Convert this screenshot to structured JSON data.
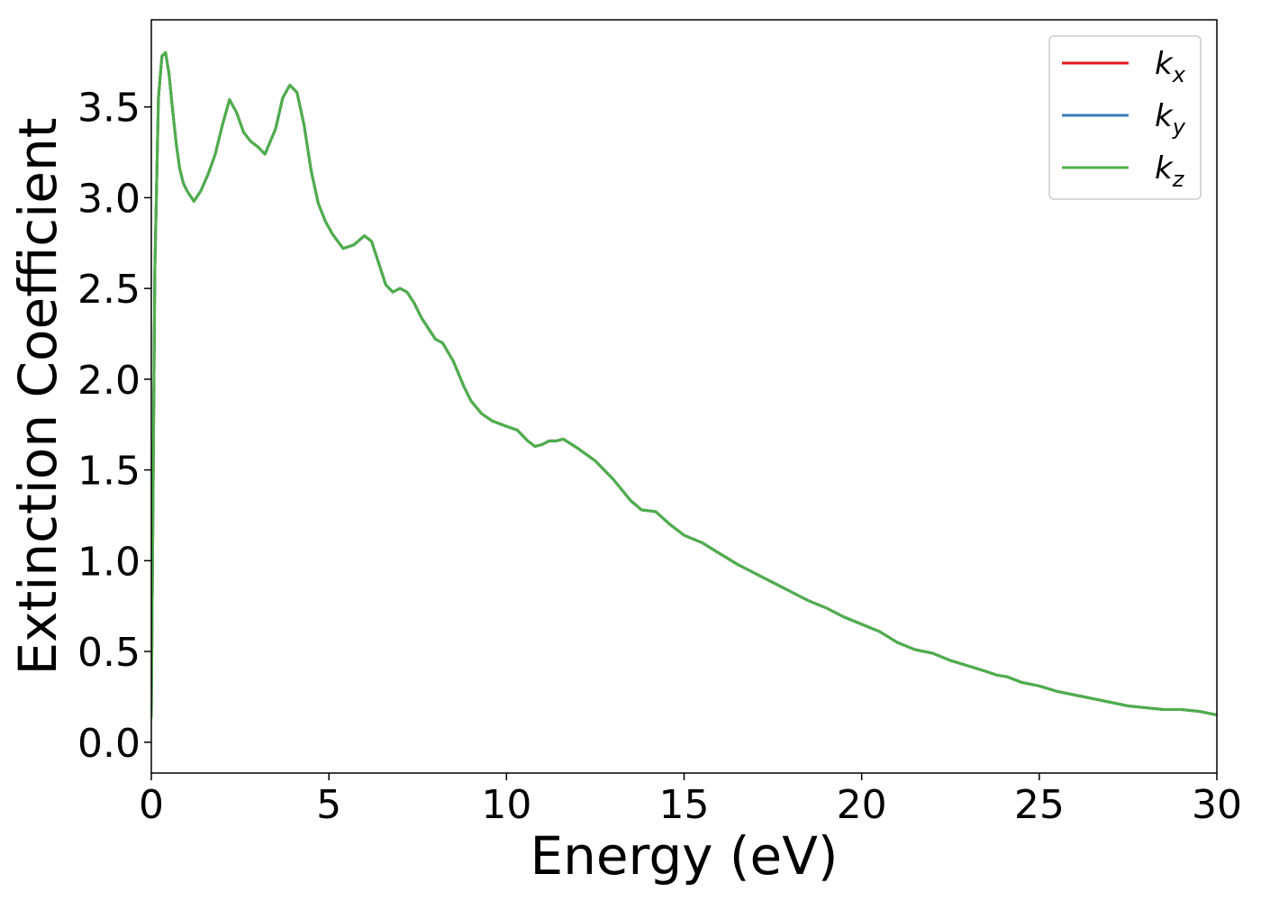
{
  "chart_data": {
    "type": "line",
    "xlabel": "Energy (eV)",
    "ylabel": "Extinction Coefficient",
    "xlim": [
      0,
      30
    ],
    "ylim": [
      -0.17,
      3.98
    ],
    "x_ticks": [
      "0",
      "5",
      "10",
      "15",
      "20",
      "25",
      "30"
    ],
    "x_tick_values": [
      0,
      5,
      10,
      15,
      20,
      25,
      30
    ],
    "y_ticks": [
      "0.0",
      "0.5",
      "1.0",
      "1.5",
      "2.0",
      "2.5",
      "3.0",
      "3.5"
    ],
    "y_tick_values": [
      0.0,
      0.5,
      1.0,
      1.5,
      2.0,
      2.5,
      3.0,
      3.5
    ],
    "grid": false,
    "legend_position": "top-right",
    "x": [
      0,
      0.1,
      0.2,
      0.3,
      0.4,
      0.5,
      0.6,
      0.7,
      0.8,
      0.9,
      1.0,
      1.2,
      1.4,
      1.6,
      1.8,
      2.0,
      2.2,
      2.4,
      2.6,
      2.8,
      3.0,
      3.2,
      3.5,
      3.7,
      3.9,
      4.1,
      4.3,
      4.5,
      4.7,
      4.9,
      5.1,
      5.4,
      5.7,
      6.0,
      6.2,
      6.4,
      6.6,
      6.8,
      7.0,
      7.2,
      7.4,
      7.6,
      7.8,
      8.0,
      8.2,
      8.5,
      8.8,
      9.0,
      9.3,
      9.6,
      10.0,
      10.3,
      10.6,
      10.8,
      11.0,
      11.2,
      11.4,
      11.6,
      12.0,
      12.5,
      13.0,
      13.5,
      13.8,
      14.2,
      14.6,
      15.0,
      15.5,
      16.0,
      16.5,
      17.0,
      17.5,
      18.0,
      18.5,
      19.0,
      19.5,
      20.0,
      20.5,
      21.0,
      21.5,
      22.0,
      22.5,
      23.0,
      23.5,
      23.8,
      24.1,
      24.5,
      25.0,
      25.5,
      26.0,
      26.5,
      27.0,
      27.5,
      28.0,
      28.5,
      29.0,
      29.5,
      30.0
    ],
    "series": [
      {
        "name": "k_x",
        "color": "#e41a1c",
        "values": [
          0.14,
          2.6,
          3.55,
          3.78,
          3.8,
          3.68,
          3.48,
          3.3,
          3.16,
          3.08,
          3.04,
          2.98,
          3.04,
          3.13,
          3.24,
          3.4,
          3.54,
          3.47,
          3.36,
          3.31,
          3.28,
          3.24,
          3.38,
          3.55,
          3.62,
          3.58,
          3.4,
          3.15,
          2.97,
          2.87,
          2.8,
          2.72,
          2.74,
          2.79,
          2.76,
          2.64,
          2.52,
          2.48,
          2.5,
          2.48,
          2.42,
          2.34,
          2.28,
          2.22,
          2.2,
          2.1,
          1.96,
          1.88,
          1.81,
          1.77,
          1.74,
          1.72,
          1.66,
          1.63,
          1.64,
          1.66,
          1.66,
          1.67,
          1.62,
          1.55,
          1.45,
          1.33,
          1.28,
          1.27,
          1.2,
          1.14,
          1.1,
          1.04,
          0.98,
          0.93,
          0.88,
          0.83,
          0.78,
          0.74,
          0.69,
          0.65,
          0.61,
          0.55,
          0.51,
          0.49,
          0.45,
          0.42,
          0.39,
          0.37,
          0.36,
          0.33,
          0.31,
          0.28,
          0.26,
          0.24,
          0.22,
          0.2,
          0.19,
          0.18,
          0.18,
          0.17,
          0.15
        ]
      },
      {
        "name": "k_y",
        "color": "#377eb8",
        "values": [
          0.14,
          2.6,
          3.55,
          3.78,
          3.8,
          3.68,
          3.48,
          3.3,
          3.16,
          3.08,
          3.04,
          2.98,
          3.04,
          3.13,
          3.24,
          3.4,
          3.54,
          3.47,
          3.36,
          3.31,
          3.28,
          3.24,
          3.38,
          3.55,
          3.62,
          3.58,
          3.4,
          3.15,
          2.97,
          2.87,
          2.8,
          2.72,
          2.74,
          2.79,
          2.76,
          2.64,
          2.52,
          2.48,
          2.5,
          2.48,
          2.42,
          2.34,
          2.28,
          2.22,
          2.2,
          2.1,
          1.96,
          1.88,
          1.81,
          1.77,
          1.74,
          1.72,
          1.66,
          1.63,
          1.64,
          1.66,
          1.66,
          1.67,
          1.62,
          1.55,
          1.45,
          1.33,
          1.28,
          1.27,
          1.2,
          1.14,
          1.1,
          1.04,
          0.98,
          0.93,
          0.88,
          0.83,
          0.78,
          0.74,
          0.69,
          0.65,
          0.61,
          0.55,
          0.51,
          0.49,
          0.45,
          0.42,
          0.39,
          0.37,
          0.36,
          0.33,
          0.31,
          0.28,
          0.26,
          0.24,
          0.22,
          0.2,
          0.19,
          0.18,
          0.18,
          0.17,
          0.15
        ]
      },
      {
        "name": "k_z",
        "color": "#4daf4a",
        "values": [
          0.14,
          2.6,
          3.55,
          3.78,
          3.8,
          3.68,
          3.48,
          3.3,
          3.16,
          3.08,
          3.04,
          2.98,
          3.04,
          3.13,
          3.24,
          3.4,
          3.54,
          3.47,
          3.36,
          3.31,
          3.28,
          3.24,
          3.38,
          3.55,
          3.62,
          3.58,
          3.4,
          3.15,
          2.97,
          2.87,
          2.8,
          2.72,
          2.74,
          2.79,
          2.76,
          2.64,
          2.52,
          2.48,
          2.5,
          2.48,
          2.42,
          2.34,
          2.28,
          2.22,
          2.2,
          2.1,
          1.96,
          1.88,
          1.81,
          1.77,
          1.74,
          1.72,
          1.66,
          1.63,
          1.64,
          1.66,
          1.66,
          1.67,
          1.62,
          1.55,
          1.45,
          1.33,
          1.28,
          1.27,
          1.2,
          1.14,
          1.1,
          1.04,
          0.98,
          0.93,
          0.88,
          0.83,
          0.78,
          0.74,
          0.69,
          0.65,
          0.61,
          0.55,
          0.51,
          0.49,
          0.45,
          0.42,
          0.39,
          0.37,
          0.36,
          0.33,
          0.31,
          0.28,
          0.26,
          0.24,
          0.22,
          0.2,
          0.19,
          0.18,
          0.18,
          0.17,
          0.15
        ]
      }
    ],
    "legend": [
      {
        "base": "k",
        "sub": "x",
        "color": "#e41a1c"
      },
      {
        "base": "k",
        "sub": "y",
        "color": "#377eb8"
      },
      {
        "base": "k",
        "sub": "z",
        "color": "#4daf4a"
      }
    ]
  }
}
